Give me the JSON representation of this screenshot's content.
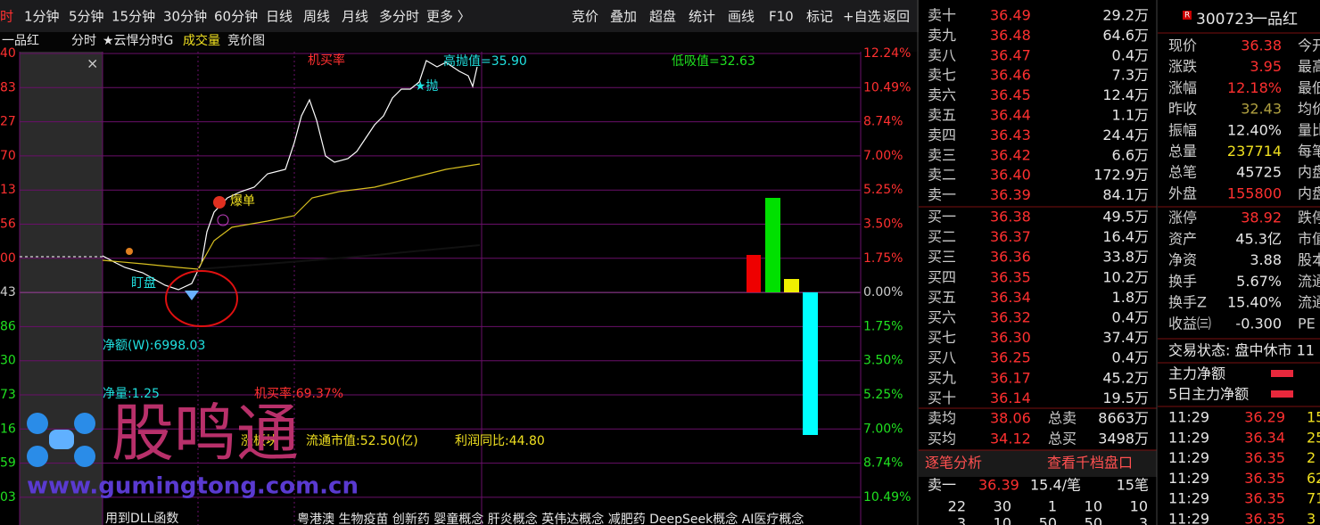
{
  "toolbar": {
    "periods": [
      "时",
      "1分钟",
      "5分钟",
      "15分钟",
      "30分钟",
      "60分钟",
      "日线",
      "周线",
      "月线",
      "多分时",
      "更多 〉"
    ],
    "buttons": [
      "竞价",
      "叠加",
      "超盘",
      "统计",
      "画线",
      "F10",
      "标记",
      "+自选",
      "返回"
    ]
  },
  "chart_header": [
    "一品红",
    "分时",
    "★云悍分时G",
    "成交量",
    "竞价图"
  ],
  "left_axis": [
    "40",
    "83",
    "27",
    "70",
    "13",
    "56",
    "00",
    "43",
    "86",
    "30",
    "73",
    "16",
    "59",
    "03"
  ],
  "right_axis": [
    "12.24%",
    "10.49%",
    "8.74%",
    "7.00%",
    "5.25%",
    "3.50%",
    "1.75%",
    "0.00%",
    "1.75%",
    "3.50%",
    "5.25%",
    "7.00%",
    "8.74%",
    "10.49%"
  ],
  "annotations": {
    "close": "×",
    "machine_buy": "机买率",
    "high_sell": "高抛值=35.90",
    "low_buy": "低吸值=32.63",
    "sell_star": "★抛",
    "burst": "爆单",
    "watch": "盯盘",
    "net_amount": "净额(W):6998.03",
    "net_volume": "净量:1.25",
    "machine_buy_rate": "机买率:69.37%",
    "sector": "涨板块",
    "float_cap": "流通市值:52.50(亿)",
    "profit_yoy": "利润同比:44.80",
    "dll": "用到DLL函数",
    "concepts": "粤港澳 生物疫苗 创新药 婴童概念 肝炎概念 英伟达概念 减肥药 DeepSeek概念 AI医疗概念"
  },
  "watermark": {
    "name": "股鸣通",
    "url": "www.gumingtong.com.cn"
  },
  "order_book": {
    "asks": [
      [
        "卖十",
        "36.49",
        "29.2万"
      ],
      [
        "卖九",
        "36.48",
        "64.6万"
      ],
      [
        "卖八",
        "36.47",
        "0.4万"
      ],
      [
        "卖七",
        "36.46",
        "7.3万"
      ],
      [
        "卖六",
        "36.45",
        "12.4万"
      ],
      [
        "卖五",
        "36.44",
        "1.1万"
      ],
      [
        "卖四",
        "36.43",
        "24.4万"
      ],
      [
        "卖三",
        "36.42",
        "6.6万"
      ],
      [
        "卖二",
        "36.40",
        "172.9万"
      ],
      [
        "卖一",
        "36.39",
        "84.1万"
      ]
    ],
    "bids": [
      [
        "买一",
        "36.38",
        "49.5万"
      ],
      [
        "买二",
        "36.37",
        "16.4万"
      ],
      [
        "买三",
        "36.36",
        "33.8万"
      ],
      [
        "买四",
        "36.35",
        "10.2万"
      ],
      [
        "买五",
        "36.34",
        "1.8万"
      ],
      [
        "买六",
        "36.32",
        "0.4万"
      ],
      [
        "买七",
        "36.30",
        "37.4万"
      ],
      [
        "买八",
        "36.25",
        "0.4万"
      ],
      [
        "买九",
        "36.17",
        "45.2万"
      ],
      [
        "买十",
        "36.14",
        "19.5万"
      ]
    ],
    "averages": [
      [
        "卖均",
        "38.06",
        "总卖",
        "8663万"
      ],
      [
        "买均",
        "34.12",
        "总买",
        "3498万"
      ]
    ],
    "links": [
      "逐笔分析",
      "查看千档盘口"
    ],
    "level1": [
      "卖一",
      "36.39",
      "15.4/笔",
      "15笔"
    ],
    "detail": [
      [
        "22",
        "30",
        "1",
        "10",
        "10"
      ],
      [
        "3",
        "10",
        "50",
        "50",
        "3"
      ]
    ]
  },
  "quote": {
    "badge": "R",
    "code": "300723",
    "name": "一品红",
    "stats": [
      [
        "现价",
        "36.38",
        "今开"
      ],
      [
        "涨跌",
        "3.95",
        "最高"
      ],
      [
        "涨幅",
        "12.18%",
        "最低"
      ],
      [
        "昨收",
        "32.43",
        "均价"
      ],
      [
        "振幅",
        "12.40%",
        "量比"
      ],
      [
        "总量",
        "237714",
        "每笔"
      ],
      [
        "总笔",
        "45725",
        "内盘"
      ],
      [
        "外盘",
        "155800",
        "内盘"
      ]
    ],
    "fundamentals": [
      [
        "涨停",
        "38.92",
        "跌停"
      ],
      [
        "资产",
        "45.3亿",
        "市值"
      ],
      [
        "净资",
        "3.88",
        "股本"
      ],
      [
        "换手",
        "5.67%",
        "流通"
      ],
      [
        "换手Z",
        "15.40%",
        "流通"
      ],
      [
        "收益㈢",
        "-0.300",
        "PE"
      ]
    ],
    "status": "交易状态: 盘中休市 11",
    "main_flow": [
      "主力净额",
      "5日主力净额"
    ],
    "trades": [
      [
        "11:29",
        "36.29",
        "15"
      ],
      [
        "11:29",
        "36.34",
        "25"
      ],
      [
        "11:29",
        "36.35",
        "2"
      ],
      [
        "11:29",
        "36.35",
        "62"
      ],
      [
        "11:29",
        "36.35",
        "71"
      ],
      [
        "11:29",
        "36.35",
        "3"
      ]
    ]
  }
}
